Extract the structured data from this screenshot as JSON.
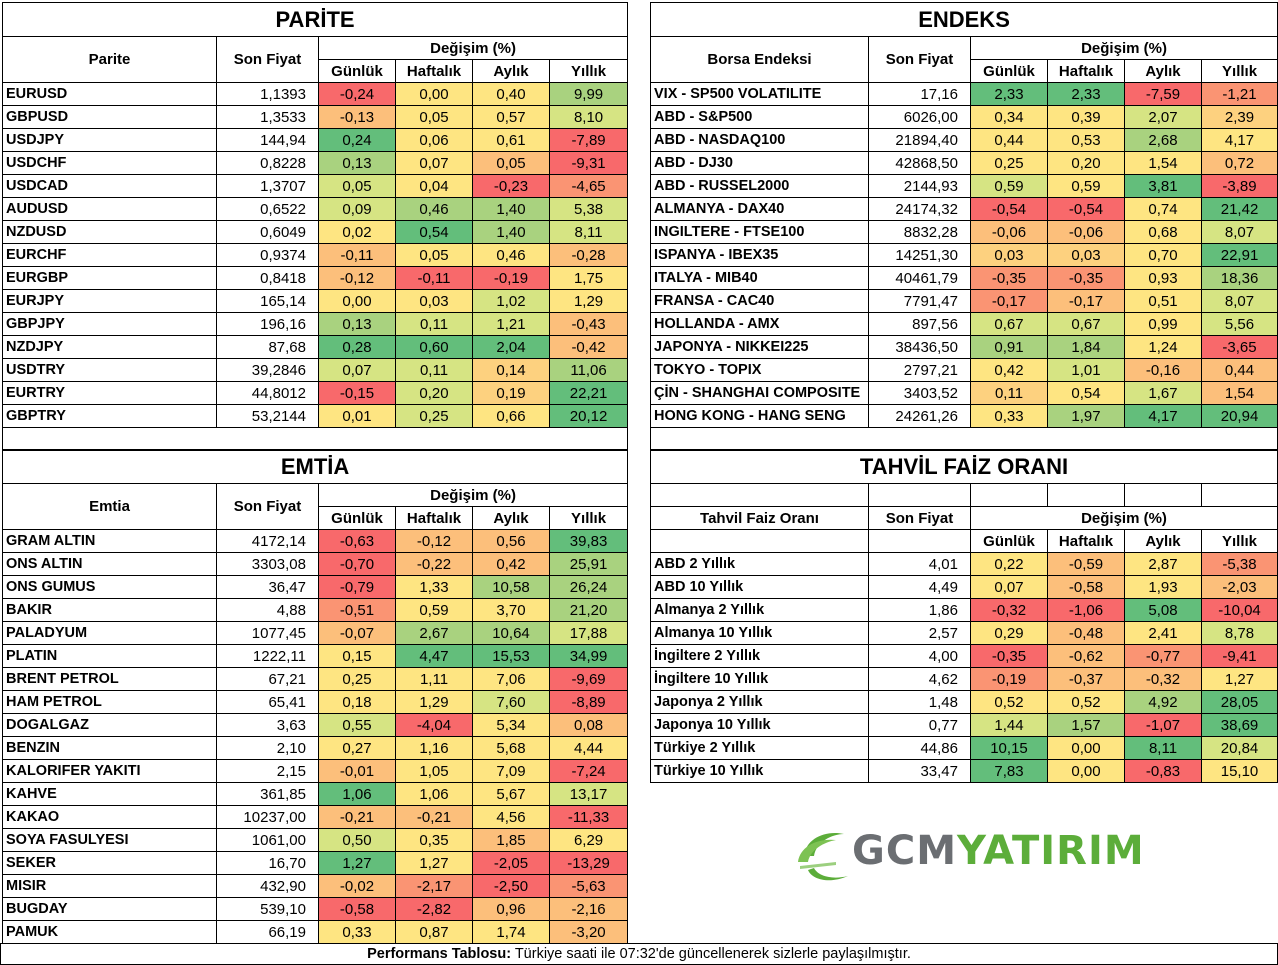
{
  "colors": {
    "green": "#63be7b",
    "lightgreen": "#a9d27f",
    "yellowgreen": "#d6e483",
    "yellow": "#fee582",
    "orange": "#fcbf7b",
    "lightorange": "#fdd17f",
    "red": "#f8696b",
    "salmon": "#fa9473"
  },
  "header_labels": {
    "son_fiyat": "Son Fiyat",
    "degisim": "Değişim (%)",
    "gunluk": "Günlük",
    "haftalik": "Haftalık",
    "aylik": "Aylık",
    "yillik": "Yıllık"
  },
  "parite": {
    "title": "PARİTE",
    "col_label": "Parite",
    "rows": [
      {
        "name": "EURUSD",
        "price": "1,1393",
        "d": "-0,24",
        "w": "0,00",
        "m": "0,40",
        "y": "9,99",
        "c": [
          "red",
          "yellow",
          "yellow",
          "lightgreen"
        ]
      },
      {
        "name": "GBPUSD",
        "price": "1,3533",
        "d": "-0,13",
        "w": "0,05",
        "m": "0,57",
        "y": "8,10",
        "c": [
          "orange",
          "yellow",
          "yellow",
          "yellowgreen"
        ]
      },
      {
        "name": "USDJPY",
        "price": "144,94",
        "d": "0,24",
        "w": "0,06",
        "m": "0,61",
        "y": "-7,89",
        "c": [
          "green",
          "yellow",
          "yellow",
          "red"
        ]
      },
      {
        "name": "USDCHF",
        "price": "0,8228",
        "d": "0,13",
        "w": "0,07",
        "m": "0,05",
        "y": "-9,31",
        "c": [
          "lightgreen",
          "yellow",
          "orange",
          "red"
        ]
      },
      {
        "name": "USDCAD",
        "price": "1,3707",
        "d": "0,05",
        "w": "0,04",
        "m": "-0,23",
        "y": "-4,65",
        "c": [
          "yellowgreen",
          "yellow",
          "red",
          "salmon"
        ]
      },
      {
        "name": "AUDUSD",
        "price": "0,6522",
        "d": "0,09",
        "w": "0,46",
        "m": "1,40",
        "y": "5,38",
        "c": [
          "yellowgreen",
          "lightgreen",
          "lightgreen",
          "yellowgreen"
        ]
      },
      {
        "name": "NZDUSD",
        "price": "0,6049",
        "d": "0,02",
        "w": "0,54",
        "m": "1,40",
        "y": "8,11",
        "c": [
          "yellow",
          "green",
          "lightgreen",
          "yellowgreen"
        ]
      },
      {
        "name": "EURCHF",
        "price": "0,9374",
        "d": "-0,11",
        "w": "0,05",
        "m": "0,46",
        "y": "-0,28",
        "c": [
          "orange",
          "yellow",
          "yellow",
          "orange"
        ]
      },
      {
        "name": "EURGBP",
        "price": "0,8418",
        "d": "-0,12",
        "w": "-0,11",
        "m": "-0,19",
        "y": "1,75",
        "c": [
          "orange",
          "red",
          "red",
          "yellow"
        ]
      },
      {
        "name": "EURJPY",
        "price": "165,14",
        "d": "0,00",
        "w": "0,03",
        "m": "1,02",
        "y": "1,29",
        "c": [
          "yellow",
          "yellow",
          "yellowgreen",
          "yellow"
        ]
      },
      {
        "name": "GBPJPY",
        "price": "196,16",
        "d": "0,13",
        "w": "0,11",
        "m": "1,21",
        "y": "-0,43",
        "c": [
          "lightgreen",
          "yellowgreen",
          "yellowgreen",
          "orange"
        ]
      },
      {
        "name": "NZDJPY",
        "price": "87,68",
        "d": "0,28",
        "w": "0,60",
        "m": "2,04",
        "y": "-0,42",
        "c": [
          "green",
          "green",
          "green",
          "orange"
        ]
      },
      {
        "name": "USDTRY",
        "price": "39,2846",
        "d": "0,07",
        "w": "0,11",
        "m": "0,14",
        "y": "11,06",
        "c": [
          "yellowgreen",
          "yellowgreen",
          "lightorange",
          "lightgreen"
        ]
      },
      {
        "name": "EURTRY",
        "price": "44,8012",
        "d": "-0,15",
        "w": "0,20",
        "m": "0,19",
        "y": "22,21",
        "c": [
          "red",
          "yellowgreen",
          "lightorange",
          "green"
        ]
      },
      {
        "name": "GBPTRY",
        "price": "53,2144",
        "d": "0,01",
        "w": "0,25",
        "m": "0,66",
        "y": "20,12",
        "c": [
          "yellow",
          "yellowgreen",
          "yellow",
          "green"
        ]
      }
    ]
  },
  "endeks": {
    "title": "ENDEKS",
    "col_label": "Borsa Endeksi",
    "rows": [
      {
        "name": "VIX  - SP500 VOLATILITE",
        "price": "17,16",
        "d": "2,33",
        "w": "2,33",
        "m": "-7,59",
        "y": "-1,21",
        "c": [
          "green",
          "green",
          "red",
          "salmon"
        ]
      },
      {
        "name": "ABD - S&P500",
        "price": "6026,00",
        "d": "0,34",
        "w": "0,39",
        "m": "2,07",
        "y": "2,39",
        "c": [
          "yellow",
          "yellow",
          "yellowgreen",
          "lightorange"
        ]
      },
      {
        "name": "ABD - NASDAQ100",
        "price": "21894,40",
        "d": "0,44",
        "w": "0,53",
        "m": "2,68",
        "y": "4,17",
        "c": [
          "yellow",
          "yellow",
          "lightgreen",
          "yellow"
        ]
      },
      {
        "name": "ABD - DJ30",
        "price": "42868,50",
        "d": "0,25",
        "w": "0,20",
        "m": "1,54",
        "y": "0,72",
        "c": [
          "yellow",
          "yellow",
          "yellow",
          "orange"
        ]
      },
      {
        "name": "ABD - RUSSEL2000",
        "price": "2144,93",
        "d": "0,59",
        "w": "0,59",
        "m": "3,81",
        "y": "-3,89",
        "c": [
          "yellowgreen",
          "yellow",
          "green",
          "red"
        ]
      },
      {
        "name": "ALMANYA - DAX40",
        "price": "24174,32",
        "d": "-0,54",
        "w": "-0,54",
        "m": "0,74",
        "y": "21,42",
        "c": [
          "red",
          "red",
          "yellow",
          "green"
        ]
      },
      {
        "name": "INGILTERE - FTSE100",
        "price": "8832,28",
        "d": "-0,06",
        "w": "-0,06",
        "m": "0,68",
        "y": "8,07",
        "c": [
          "orange",
          "orange",
          "yellow",
          "yellowgreen"
        ]
      },
      {
        "name": "ISPANYA - IBEX35",
        "price": "14251,30",
        "d": "0,03",
        "w": "0,03",
        "m": "0,70",
        "y": "22,91",
        "c": [
          "lightorange",
          "lightorange",
          "yellow",
          "green"
        ]
      },
      {
        "name": "ITALYA - MIB40",
        "price": "40461,79",
        "d": "-0,35",
        "w": "-0,35",
        "m": "0,93",
        "y": "18,36",
        "c": [
          "salmon",
          "salmon",
          "yellow",
          "lightgreen"
        ]
      },
      {
        "name": "FRANSA - CAC40",
        "price": "7791,47",
        "d": "-0,17",
        "w": "-0,17",
        "m": "0,51",
        "y": "8,07",
        "c": [
          "salmon",
          "orange",
          "yellow",
          "yellowgreen"
        ]
      },
      {
        "name": "HOLLANDA - AMX",
        "price": "897,56",
        "d": "0,67",
        "w": "0,67",
        "m": "0,99",
        "y": "5,56",
        "c": [
          "yellowgreen",
          "yellowgreen",
          "yellow",
          "yellowgreen"
        ]
      },
      {
        "name": "JAPONYA - NIKKEI225",
        "price": "38436,50",
        "d": "0,91",
        "w": "1,84",
        "m": "1,24",
        "y": "-3,65",
        "c": [
          "lightgreen",
          "lightgreen",
          "yellow",
          "red"
        ]
      },
      {
        "name": "TOKYO - TOPIX",
        "price": "2797,21",
        "d": "0,42",
        "w": "1,01",
        "m": "-0,16",
        "y": "0,44",
        "c": [
          "yellow",
          "yellowgreen",
          "orange",
          "orange"
        ]
      },
      {
        "name": "ÇİN - SHANGHAI COMPOSITE",
        "price": "3403,52",
        "d": "0,11",
        "w": "0,54",
        "m": "1,67",
        "y": "1,54",
        "c": [
          "lightorange",
          "yellow",
          "yellowgreen",
          "orange"
        ]
      },
      {
        "name": "HONG KONG - HANG SENG",
        "price": "24261,26",
        "d": "0,33",
        "w": "1,97",
        "m": "4,17",
        "y": "20,94",
        "c": [
          "yellow",
          "lightgreen",
          "green",
          "green"
        ]
      }
    ]
  },
  "emtia": {
    "title": "EMTİA",
    "col_label": "Emtia",
    "rows": [
      {
        "name": "GRAM ALTIN",
        "price": "4172,14",
        "d": "-0,63",
        "w": "-0,12",
        "m": "0,56",
        "y": "39,83",
        "c": [
          "red",
          "orange",
          "orange",
          "green"
        ]
      },
      {
        "name": "ONS ALTIN",
        "price": "3303,08",
        "d": "-0,70",
        "w": "-0,22",
        "m": "0,42",
        "y": "25,91",
        "c": [
          "red",
          "orange",
          "orange",
          "lightgreen"
        ]
      },
      {
        "name": "ONS GUMUS",
        "price": "36,47",
        "d": "-0,79",
        "w": "1,33",
        "m": "10,58",
        "y": "26,24",
        "c": [
          "red",
          "yellow",
          "lightgreen",
          "lightgreen"
        ]
      },
      {
        "name": "BAKIR",
        "price": "4,88",
        "d": "-0,51",
        "w": "0,59",
        "m": "3,70",
        "y": "21,20",
        "c": [
          "salmon",
          "yellow",
          "yellow",
          "lightgreen"
        ]
      },
      {
        "name": "PALADYUM",
        "price": "1077,45",
        "d": "-0,07",
        "w": "2,67",
        "m": "10,64",
        "y": "17,88",
        "c": [
          "orange",
          "lightgreen",
          "lightgreen",
          "yellowgreen"
        ]
      },
      {
        "name": "PLATIN",
        "price": "1222,11",
        "d": "0,15",
        "w": "4,47",
        "m": "15,53",
        "y": "34,99",
        "c": [
          "yellow",
          "green",
          "green",
          "green"
        ]
      },
      {
        "name": "BRENT PETROL",
        "price": "67,21",
        "d": "0,25",
        "w": "1,11",
        "m": "7,06",
        "y": "-9,69",
        "c": [
          "yellow",
          "yellow",
          "yellow",
          "red"
        ]
      },
      {
        "name": "HAM PETROL",
        "price": "65,41",
        "d": "0,18",
        "w": "1,29",
        "m": "7,60",
        "y": "-8,89",
        "c": [
          "yellow",
          "yellow",
          "yellowgreen",
          "red"
        ]
      },
      {
        "name": "DOGALGAZ",
        "price": "3,63",
        "d": "0,55",
        "w": "-4,04",
        "m": "5,34",
        "y": "0,08",
        "c": [
          "yellowgreen",
          "red",
          "yellow",
          "orange"
        ]
      },
      {
        "name": "BENZIN",
        "price": "2,10",
        "d": "0,27",
        "w": "1,16",
        "m": "5,68",
        "y": "4,44",
        "c": [
          "yellow",
          "yellow",
          "yellow",
          "yellow"
        ]
      },
      {
        "name": "KALORIFER YAKITI",
        "price": "2,15",
        "d": "-0,01",
        "w": "1,05",
        "m": "7,09",
        "y": "-7,24",
        "c": [
          "orange",
          "yellow",
          "yellow",
          "red"
        ]
      },
      {
        "name": "KAHVE",
        "price": "361,85",
        "d": "1,06",
        "w": "1,06",
        "m": "5,67",
        "y": "13,17",
        "c": [
          "green",
          "yellow",
          "yellow",
          "yellowgreen"
        ]
      },
      {
        "name": "KAKAO",
        "price": "10237,00",
        "d": "-0,21",
        "w": "-0,21",
        "m": "4,56",
        "y": "-11,33",
        "c": [
          "orange",
          "orange",
          "yellow",
          "red"
        ]
      },
      {
        "name": "SOYA FASULYESI",
        "price": "1061,00",
        "d": "0,50",
        "w": "0,35",
        "m": "1,85",
        "y": "6,29",
        "c": [
          "yellowgreen",
          "yellow",
          "orange",
          "yellow"
        ]
      },
      {
        "name": "SEKER",
        "price": "16,70",
        "d": "1,27",
        "w": "1,27",
        "m": "-2,05",
        "y": "-13,29",
        "c": [
          "green",
          "yellow",
          "red",
          "red"
        ]
      },
      {
        "name": "MISIR",
        "price": "432,90",
        "d": "-0,02",
        "w": "-2,17",
        "m": "-2,50",
        "y": "-5,63",
        "c": [
          "orange",
          "salmon",
          "red",
          "salmon"
        ]
      },
      {
        "name": "BUGDAY",
        "price": "539,10",
        "d": "-0,58",
        "w": "-2,82",
        "m": "0,96",
        "y": "-2,16",
        "c": [
          "red",
          "red",
          "orange",
          "orange"
        ]
      },
      {
        "name": "PAMUK",
        "price": "66,19",
        "d": "0,33",
        "w": "0,87",
        "m": "1,74",
        "y": "-3,20",
        "c": [
          "yellow",
          "yellow",
          "yellow",
          "orange"
        ]
      }
    ]
  },
  "tahvil": {
    "title": "TAHVİL FAİZ ORANI",
    "col_label": "Tahvil Faiz Oranı",
    "rows": [
      {
        "name": "ABD 2 Yıllık",
        "price": "4,01",
        "d": "0,22",
        "w": "-0,59",
        "m": "2,87",
        "y": "-5,38",
        "c": [
          "yellow",
          "orange",
          "yellow",
          "salmon"
        ]
      },
      {
        "name": "ABD 10 Yıllık",
        "price": "4,49",
        "d": "0,07",
        "w": "-0,58",
        "m": "1,93",
        "y": "-2,03",
        "c": [
          "yellow",
          "orange",
          "yellow",
          "orange"
        ]
      },
      {
        "name": "Almanya 2 Yıllık",
        "price": "1,86",
        "d": "-0,32",
        "w": "-1,06",
        "m": "5,08",
        "y": "-10,04",
        "c": [
          "red",
          "red",
          "green",
          "red"
        ]
      },
      {
        "name": "Almanya 10 Yıllık",
        "price": "2,57",
        "d": "0,29",
        "w": "-0,48",
        "m": "2,41",
        "y": "8,78",
        "c": [
          "yellow",
          "orange",
          "yellow",
          "yellowgreen"
        ]
      },
      {
        "name": "İngiltere 2 Yıllık",
        "price": "4,00",
        "d": "-0,35",
        "w": "-0,62",
        "m": "-0,77",
        "y": "-9,41",
        "c": [
          "red",
          "orange",
          "salmon",
          "red"
        ]
      },
      {
        "name": "İngiltere 10 Yıllık",
        "price": "4,62",
        "d": "-0,19",
        "w": "-0,37",
        "m": "-0,32",
        "y": "1,27",
        "c": [
          "salmon",
          "orange",
          "orange",
          "yellow"
        ]
      },
      {
        "name": "Japonya 2 Yıllık",
        "price": "1,48",
        "d": "0,52",
        "w": "0,52",
        "m": "4,92",
        "y": "28,05",
        "c": [
          "yellow",
          "yellow",
          "lightgreen",
          "green"
        ]
      },
      {
        "name": "Japonya 10 Yıllık",
        "price": "0,77",
        "d": "1,44",
        "w": "1,57",
        "m": "-1,07",
        "y": "38,69",
        "c": [
          "yellowgreen",
          "lightgreen",
          "red",
          "green"
        ]
      },
      {
        "name": "Türkiye 2 Yıllık",
        "price": "44,86",
        "d": "10,15",
        "w": "0,00",
        "m": "8,11",
        "y": "20,84",
        "c": [
          "green",
          "yellow",
          "green",
          "yellowgreen"
        ]
      },
      {
        "name": "Türkiye 10 Yıllık",
        "price": "33,47",
        "d": "7,83",
        "w": "0,00",
        "m": "-0,83",
        "y": "15,10",
        "c": [
          "green",
          "yellow",
          "red",
          "yellow"
        ]
      }
    ]
  },
  "logo": {
    "part1": "GCM",
    "part2": "YATIRIM"
  },
  "footer": {
    "bold": "Performans Tablosu:",
    "text": " Türkiye saati ile 07:32'de güncellenerek sizlerle paylaşılmıştır."
  }
}
